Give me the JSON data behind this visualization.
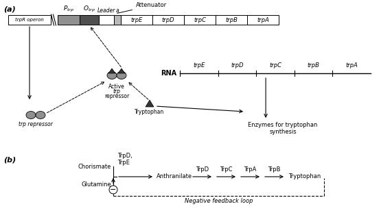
{
  "fig_width": 5.71,
  "fig_height": 3.11,
  "dpi": 100,
  "background_color": "#ffffff",
  "gray_dark": "#505050",
  "gray_mid": "#909090",
  "gray_light": "#b8b8b8",
  "gene_labels_top": [
    "trpE",
    "trpD",
    "trpC",
    "trpB",
    "trpA"
  ],
  "gene_labels_rna": [
    "trpE",
    "trpD",
    "trpC",
    "trpB",
    "trpA"
  ],
  "operon_label": "trpR operon",
  "trp_repressor_label": "trp repressor",
  "Tryptophan_label": "Tryptophan",
  "Enzymes_label": "Enzymes for tryptophan\nsynthesis",
  "RNA_label": "RNA",
  "chorismate_label": "Chorismate",
  "glutamine_label": "Glutamine",
  "TrpDE_label": "TrpD,\nTrpE",
  "Anthranilate_label": "Anthranilate",
  "TrpD_label": "TrpD",
  "TrpC_label": "TrpC",
  "TrpA_label": "TrpA",
  "TrpB_label": "TrpB",
  "Tryptophan_b_label": "Tryptophan",
  "neg_feedback_label": "Negative feedback loop"
}
